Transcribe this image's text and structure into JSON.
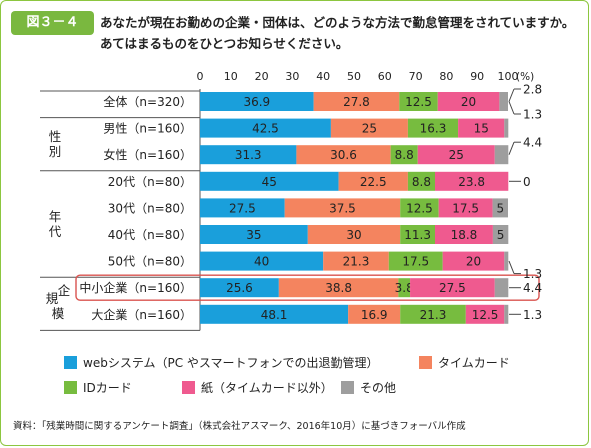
{
  "figure": {
    "label": "図３－４",
    "question_line1": "あなたが現在お勤めの企業・団体は、どのような方法で勤怠管理をされていますか。",
    "question_line2": "あてはまるものをひとつお知らせください。"
  },
  "groups": [
    {
      "label": "",
      "rows": 1
    },
    {
      "label": "性別",
      "rows": 2
    },
    {
      "label": "年代",
      "rows": 4
    },
    {
      "label": "規模",
      "label_top": "規",
      "label_bottom": "模",
      "label_side": "企",
      "rows": 2
    }
  ],
  "highlight_row": 7,
  "colors": {
    "web": "#1a9fdb",
    "timecard": "#f4845f",
    "idcard": "#77bc3f",
    "paper": "#ef5a8f",
    "other": "#9e9e9e",
    "accent_green": "#7ab83f",
    "highlight_border": "#d9534f"
  },
  "chart_data": {
    "type": "bar",
    "orientation": "horizontal",
    "stacked": true,
    "unit": "(%)",
    "xlim": [
      0,
      100
    ],
    "ticks": [
      0,
      10,
      20,
      30,
      40,
      50,
      60,
      70,
      80,
      90,
      100
    ],
    "categories": [
      "全体（n=320）",
      "男性（n=160）",
      "女性（n=160）",
      "20代（n=80）",
      "30代（n=80）",
      "40代（n=80）",
      "50代（n=80）",
      "中小企業（n=160）",
      "大企業（n=160）"
    ],
    "series": [
      {
        "name": "webシステム（PC やスマートフォンでの出退勤管理）",
        "color": "#1a9fdb",
        "values": [
          36.9,
          42.5,
          31.3,
          45,
          27.5,
          35,
          40,
          25.6,
          48.1
        ]
      },
      {
        "name": "タイムカード",
        "color": "#f4845f",
        "values": [
          27.8,
          25,
          30.6,
          22.5,
          37.5,
          30,
          21.3,
          38.8,
          16.9
        ]
      },
      {
        "name": "IDカード",
        "color": "#77bc3f",
        "values": [
          12.5,
          16.3,
          8.8,
          8.8,
          12.5,
          11.3,
          17.5,
          3.8,
          21.3
        ]
      },
      {
        "name": "紙（タイムカード以外）",
        "color": "#ef5a8f",
        "values": [
          20,
          15,
          25,
          23.8,
          17.5,
          18.8,
          20,
          27.5,
          12.5
        ]
      },
      {
        "name": "その他",
        "color": "#9e9e9e",
        "values": [
          2.8,
          1.3,
          4.4,
          0,
          5,
          5,
          1.3,
          4.4,
          1.3
        ]
      }
    ],
    "segment_labels": [
      [
        "36.9",
        "27.8",
        "12.5",
        "20",
        ""
      ],
      [
        "42.5",
        "25",
        "16.3",
        "15",
        ""
      ],
      [
        "31.3",
        "30.6",
        "8.8",
        "25",
        ""
      ],
      [
        "45",
        "22.5",
        "8.8",
        "23.8",
        ""
      ],
      [
        "27.5",
        "37.5",
        "12.5",
        "17.5",
        "5"
      ],
      [
        "35",
        "30",
        "11.3",
        "18.8",
        "5"
      ],
      [
        "40",
        "21.3",
        "17.5",
        "20",
        ""
      ],
      [
        "25.6",
        "38.8",
        "3.8",
        "27.5",
        ""
      ],
      [
        "48.1",
        "16.9",
        "21.3",
        "12.5",
        ""
      ]
    ],
    "callouts": [
      {
        "row": 0,
        "text": "2.8",
        "level": "top"
      },
      {
        "row": 0,
        "text": "1.3",
        "level": "bottom"
      },
      {
        "row": 2,
        "text": "4.4",
        "level": "top"
      },
      {
        "row": 3,
        "text": "0",
        "level": "mid"
      },
      {
        "row": 6,
        "text": "1.3",
        "level": "bottom"
      },
      {
        "row": 7,
        "text": "4.4",
        "level": "mid"
      },
      {
        "row": 8,
        "text": "1.3",
        "level": "mid"
      }
    ]
  },
  "legend": [
    {
      "label": "webシステム（PC やスマートフォンでの出退勤管理）",
      "color": "#1a9fdb"
    },
    {
      "label": "タイムカード",
      "color": "#f4845f"
    },
    {
      "label": "IDカード",
      "color": "#77bc3f"
    },
    {
      "label": "紙（タイムカード以外）",
      "color": "#ef5a8f"
    },
    {
      "label": "その他",
      "color": "#9e9e9e"
    }
  ],
  "source": "資料：「残業時間に関するアンケート調査」（株式会社アスマーク、2016年10月）に基づきフォーバル作成"
}
